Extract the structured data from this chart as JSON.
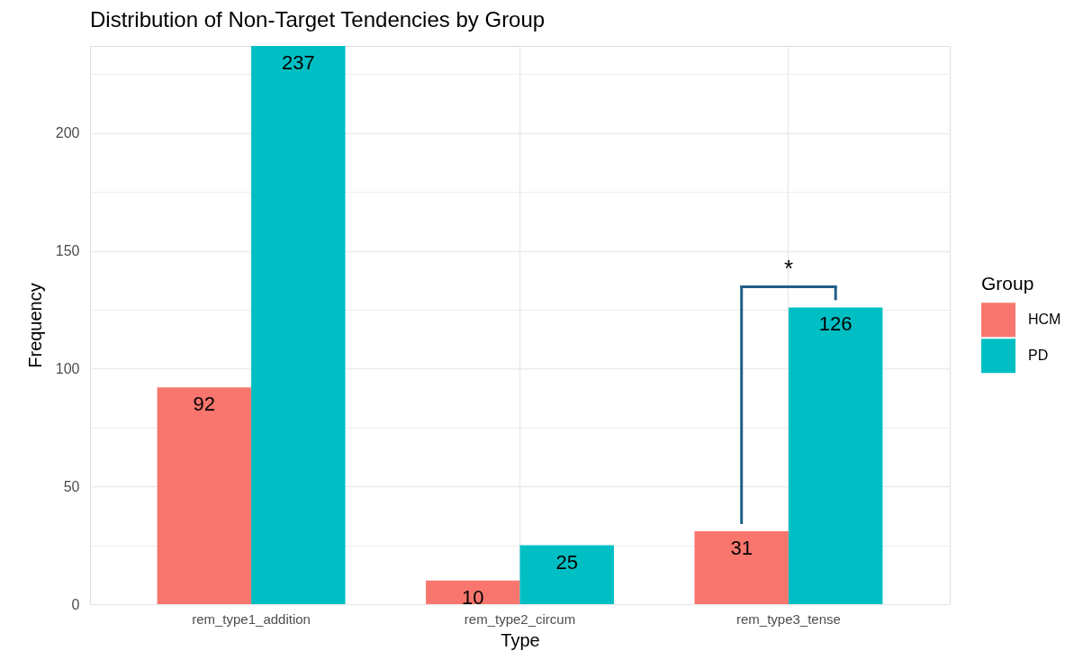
{
  "chart_data": {
    "type": "bar",
    "title": "Distribution of Non-Target Tendencies by Group",
    "xlabel": "Type",
    "ylabel": "Frequency",
    "legend_title": "Group",
    "categories": [
      "rem_type1_addition",
      "rem_type2_circum",
      "rem_type3_tense"
    ],
    "series": [
      {
        "name": "HCM",
        "color": "#f8766d",
        "values": [
          92,
          10,
          31
        ]
      },
      {
        "name": "PD",
        "color": "#00bfc4",
        "values": [
          237,
          25,
          126
        ]
      }
    ],
    "ylim": [
      0,
      237
    ],
    "yticks": [
      0,
      {
        "value": 25,
        "label": null
      },
      50,
      {
        "value": 75,
        "label": null
      },
      100,
      {
        "value": 125,
        "label": null
      },
      150,
      {
        "value": 175,
        "label": null
      },
      200,
      {
        "value": 225,
        "label": null
      }
    ],
    "grid": true,
    "legend": "right",
    "data_labels": true,
    "annotations": [
      "*"
    ]
  }
}
